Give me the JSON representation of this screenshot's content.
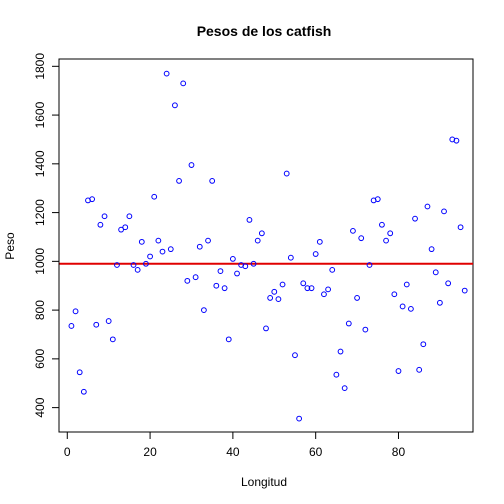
{
  "chart_data": {
    "type": "scatter",
    "title": "Pesos de los catfish",
    "xlabel": "Longitud",
    "ylabel": "Peso",
    "xlim": [
      -2,
      98
    ],
    "ylim": [
      300,
      1830
    ],
    "x_ticks": [
      0,
      20,
      40,
      60,
      80
    ],
    "y_ticks": [
      400,
      600,
      800,
      1000,
      1200,
      1400,
      1600,
      1800
    ],
    "grid": false,
    "legend": "none",
    "colors": {
      "points": "#0000ff",
      "reference_line": "#e00000",
      "axes": "#000000"
    },
    "reference_line": {
      "orientation": "horizontal",
      "y": 990
    },
    "series": [
      {
        "x": [
          1,
          2,
          3,
          4,
          5,
          6,
          7,
          8,
          9,
          10,
          11,
          12,
          13,
          14,
          15,
          16,
          17,
          18,
          19,
          20,
          21,
          22,
          23,
          24,
          25,
          26,
          27,
          28,
          29,
          30,
          31,
          32,
          33,
          34,
          35,
          36,
          37,
          38,
          39,
          40,
          41,
          42,
          43,
          44,
          45,
          46,
          47,
          48,
          49,
          50,
          51,
          52,
          53,
          54,
          55,
          56,
          57,
          58,
          59,
          60,
          61,
          62,
          63,
          64,
          65,
          66,
          67,
          68,
          69,
          70,
          71,
          72,
          73,
          74,
          75,
          76,
          77,
          78,
          79,
          80,
          81,
          82,
          83,
          84,
          85,
          86,
          87,
          88,
          89,
          90,
          91,
          92,
          93,
          94,
          95,
          96
        ],
        "y": [
          735,
          795,
          545,
          465,
          1250,
          1255,
          740,
          1150,
          1185,
          755,
          680,
          985,
          1130,
          1140,
          1185,
          985,
          965,
          1080,
          990,
          1020,
          1265,
          1085,
          1040,
          1770,
          1050,
          1640,
          1330,
          1730,
          920,
          1395,
          935,
          1060,
          800,
          1085,
          1330,
          900,
          960,
          890,
          680,
          1010,
          950,
          985,
          980,
          1170,
          990,
          1085,
          1115,
          725,
          850,
          875,
          845,
          905,
          1360,
          1015,
          615,
          355,
          910,
          890,
          890,
          1030,
          1080,
          865,
          885,
          965,
          535,
          630,
          480,
          745,
          1125,
          850,
          1095,
          720,
          985,
          1250,
          1255,
          1150,
          1085,
          1115,
          865,
          550,
          815,
          905,
          805,
          1175,
          555,
          660,
          1225,
          1050,
          955,
          830,
          1205,
          910,
          1500,
          1495,
          1140,
          880
        ]
      }
    ]
  }
}
